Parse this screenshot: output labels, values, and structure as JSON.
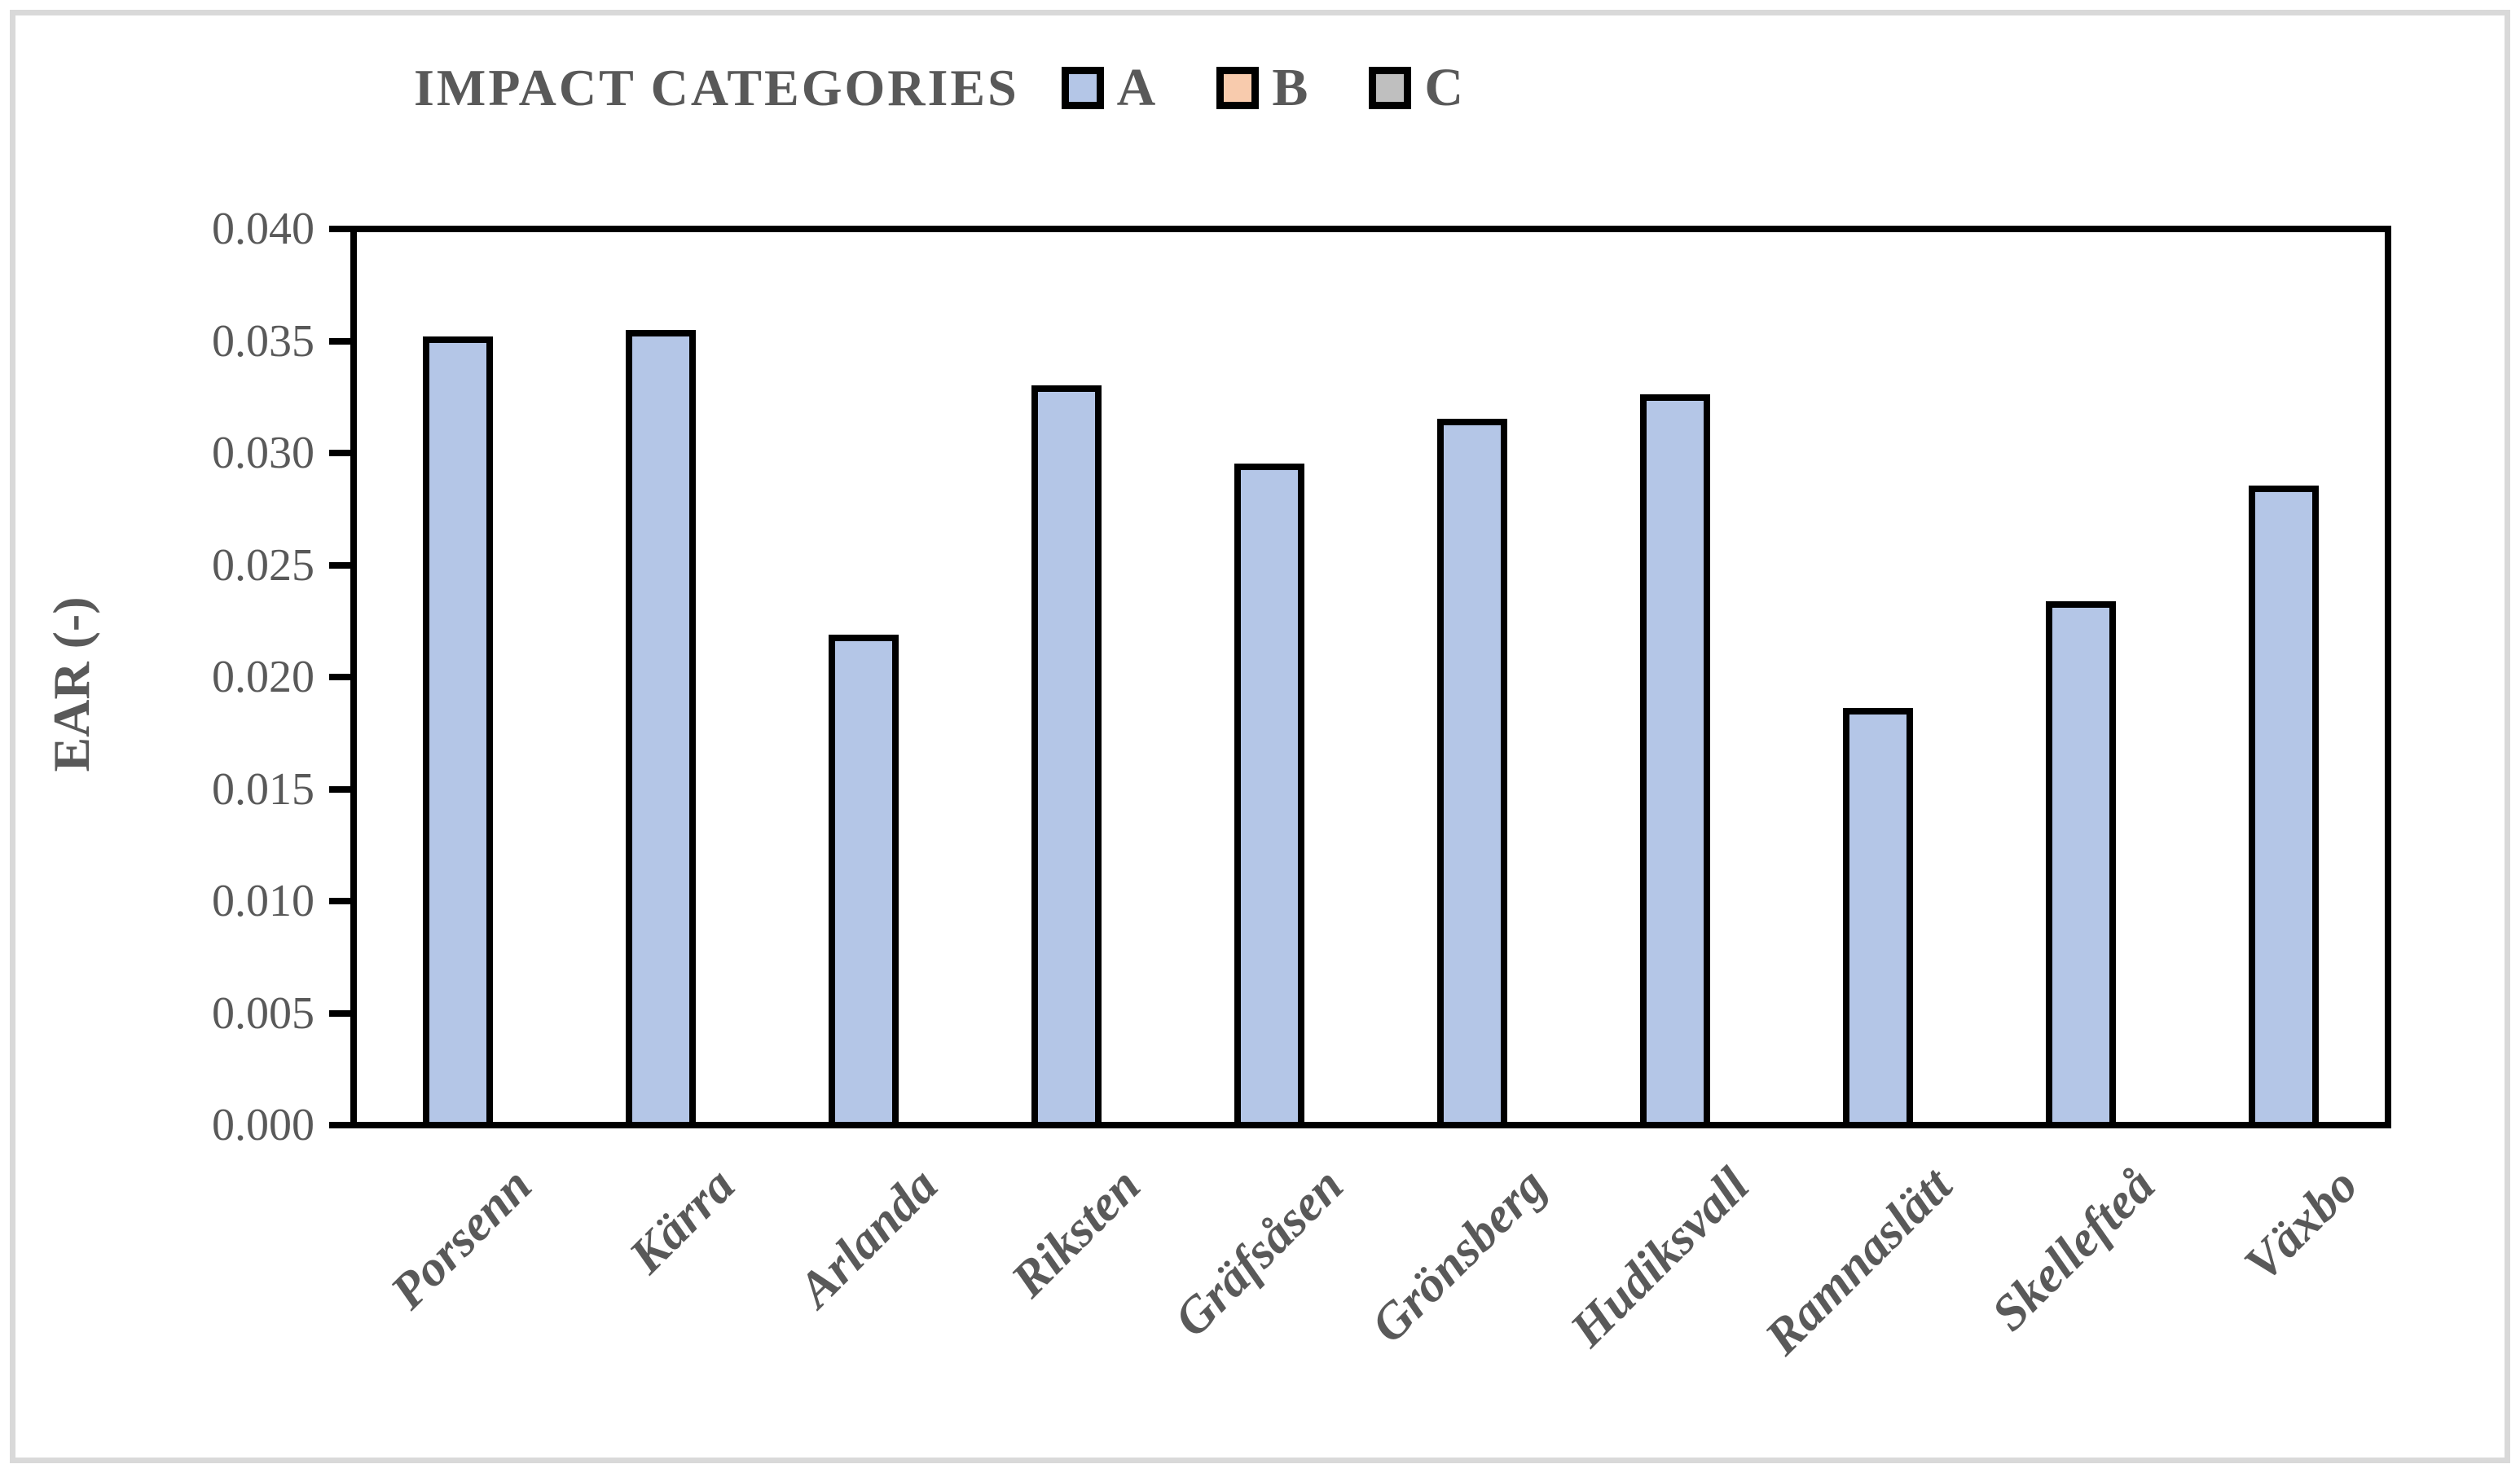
{
  "figure": {
    "legend_title": "IMPACT CATEGORIES",
    "legend": [
      {
        "label": "A",
        "color": "#b4c6e7"
      },
      {
        "label": "B",
        "color": "#f8cbad"
      },
      {
        "label": "C",
        "color": "#bfbfbf"
      }
    ],
    "text_color": "#595959",
    "frame_color": "#d9d9d9"
  },
  "chart_data": {
    "type": "bar",
    "title": "IMPACT CATEGORIES",
    "categories": [
      "Porsenn",
      "Kärra",
      "Arlanda",
      "Riksten",
      "Gräfsåsen",
      "Grönsberg",
      "Hudiksvall",
      "Ramnaslätt",
      "Skellefteå",
      "Växbo"
    ],
    "series": [
      {
        "name": "A",
        "color": "#b4c6e7",
        "values": [
          0.0353,
          0.0356,
          0.0219,
          0.0331,
          0.0296,
          0.0316,
          0.0327,
          0.0186,
          0.0234,
          0.0286
        ]
      },
      {
        "name": "B",
        "color": "#f8cbad",
        "values": []
      },
      {
        "name": "C",
        "color": "#bfbfbf",
        "values": []
      }
    ],
    "xlabel": "",
    "ylabel": "EAR (-)",
    "ylim": [
      0,
      0.04
    ],
    "ytick_step": 0.005,
    "ytick_labels": [
      "0.000",
      "0.005",
      "0.010",
      "0.015",
      "0.020",
      "0.025",
      "0.030",
      "0.035",
      "0.040"
    ],
    "grid": false,
    "legend_position": "top",
    "bar_border_color": "#000000",
    "bar_fill_color": "#b4c6e7"
  }
}
